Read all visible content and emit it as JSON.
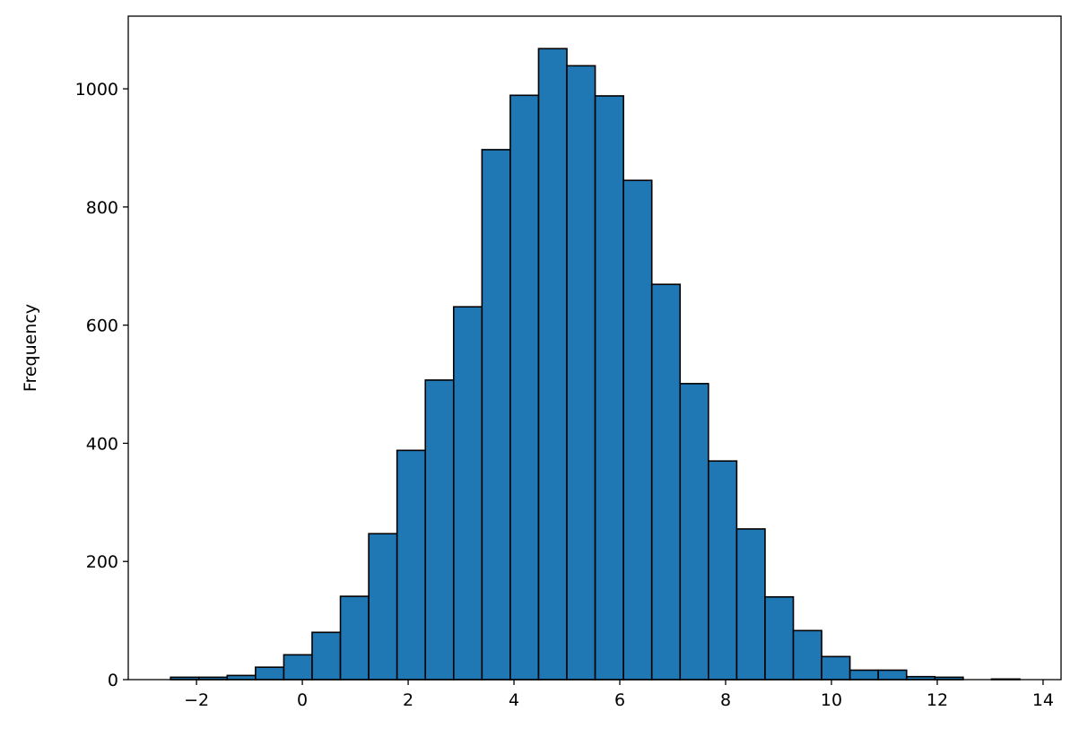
{
  "chart_data": {
    "type": "histogram",
    "y_label": "Frequency",
    "bins": [
      -2.49,
      -1.955,
      -1.42,
      -0.885,
      -0.35,
      0.185,
      0.72,
      1.255,
      1.79,
      2.325,
      2.86,
      3.395,
      3.93,
      4.465,
      5.0,
      5.535,
      6.07,
      6.605,
      7.14,
      7.675,
      8.21,
      8.745,
      9.28,
      9.815,
      10.35,
      10.885,
      11.42,
      11.955,
      12.49,
      13.025,
      13.56
    ],
    "counts": [
      4,
      4,
      7,
      21,
      42,
      80,
      141,
      247,
      388,
      507,
      631,
      897,
      989,
      1068,
      1039,
      988,
      845,
      669,
      501,
      370,
      255,
      140,
      83,
      39,
      16,
      16,
      5,
      4,
      0,
      1
    ],
    "color": "#1f77b4",
    "edgecolor": "#000000",
    "xlim": [
      -3.29,
      14.34
    ],
    "ylim": [
      0,
      1123
    ],
    "xticks": [
      {
        "value": -2,
        "label": "−2"
      },
      0,
      2,
      4,
      6,
      8,
      10,
      12,
      14
    ],
    "yticks": [
      0,
      200,
      400,
      600,
      800,
      1000
    ]
  }
}
